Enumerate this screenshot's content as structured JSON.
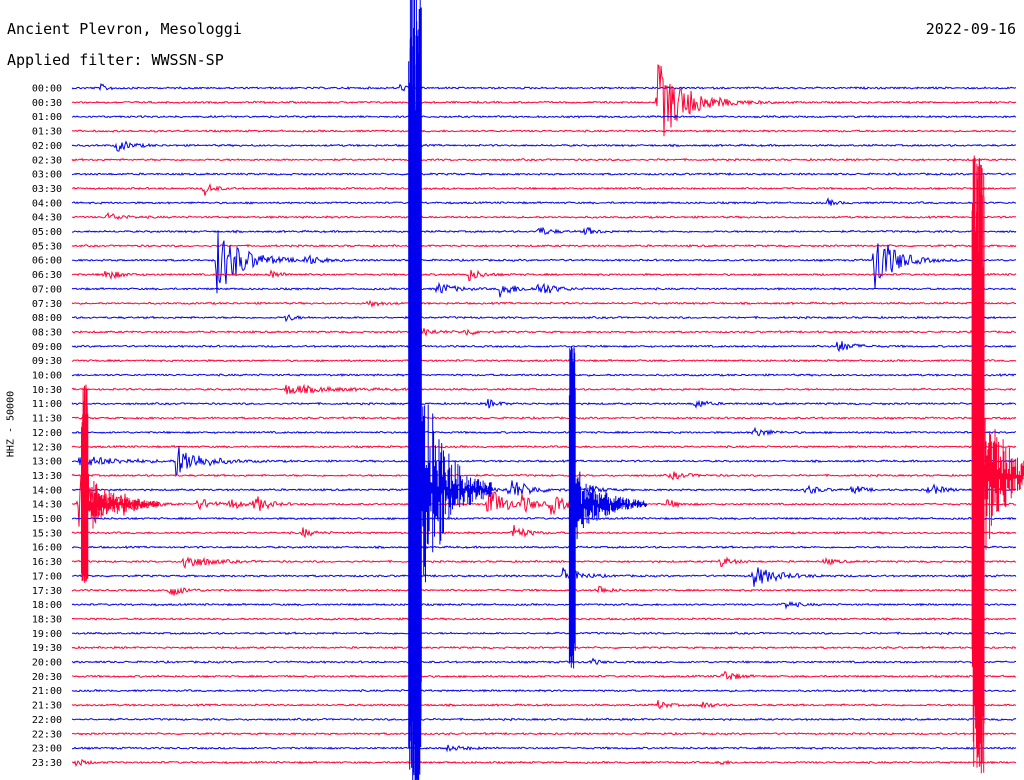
{
  "header": {
    "station": "Ancient Plevron, Mesologgi",
    "filter": "Applied filter: WWSSN-SP",
    "date": "2022-09-16"
  },
  "chart_data": {
    "type": "line",
    "title": "Ancient Plevron, Mesologgi",
    "subtitle": "Applied filter: WWSSN-SP",
    "date": "2022-09-16",
    "ylabel": "HHZ - 50000",
    "xlabel": "",
    "x_range_minutes": [
      0,
      30
    ],
    "rows_per_hour": 2,
    "row_labels": [
      "00:00",
      "00:30",
      "01:00",
      "01:30",
      "02:00",
      "02:30",
      "03:00",
      "03:30",
      "04:00",
      "04:30",
      "05:00",
      "05:30",
      "06:00",
      "06:30",
      "07:00",
      "07:30",
      "08:00",
      "08:30",
      "09:00",
      "09:30",
      "10:00",
      "10:30",
      "11:00",
      "11:30",
      "12:00",
      "12:30",
      "13:00",
      "13:30",
      "14:00",
      "14:30",
      "15:00",
      "15:30",
      "16:00",
      "16:30",
      "17:00",
      "17:30",
      "18:00",
      "18:30",
      "19:00",
      "19:30",
      "20:00",
      "20:30",
      "21:00",
      "21:30",
      "22:00",
      "22:30",
      "23:00",
      "23:30"
    ],
    "trace_colors": [
      "#0000ee",
      "#ff0033"
    ],
    "events": [
      {
        "row": 0,
        "minute": 0.9,
        "amp": 0.25,
        "dur": 0.6
      },
      {
        "row": 0,
        "minute": 10.4,
        "amp": 0.25,
        "dur": 0.6
      },
      {
        "row": 1,
        "minute": 18.6,
        "amp": 3.0,
        "dur": 1.8
      },
      {
        "row": 4,
        "minute": 1.4,
        "amp": 0.45,
        "dur": 0.9
      },
      {
        "row": 7,
        "minute": 4.2,
        "amp": 0.5,
        "dur": 0.6
      },
      {
        "row": 9,
        "minute": 1.1,
        "amp": 0.3,
        "dur": 1.0
      },
      {
        "row": 8,
        "minute": 24.0,
        "amp": 0.25,
        "dur": 0.6
      },
      {
        "row": 10,
        "minute": 14.8,
        "amp": 0.35,
        "dur": 0.8
      },
      {
        "row": 10,
        "minute": 16.3,
        "amp": 0.35,
        "dur": 0.6
      },
      {
        "row": 12,
        "minute": 4.6,
        "amp": 2.5,
        "dur": 1.6
      },
      {
        "row": 12,
        "minute": 7.4,
        "amp": 0.35,
        "dur": 0.9
      },
      {
        "row": 12,
        "minute": 25.5,
        "amp": 2.5,
        "dur": 1.2
      },
      {
        "row": 13,
        "minute": 1.0,
        "amp": 0.45,
        "dur": 0.9
      },
      {
        "row": 13,
        "minute": 6.3,
        "amp": 0.3,
        "dur": 0.7
      },
      {
        "row": 13,
        "minute": 12.6,
        "amp": 0.45,
        "dur": 0.8
      },
      {
        "row": 14,
        "minute": 11.6,
        "amp": 0.5,
        "dur": 1.0
      },
      {
        "row": 14,
        "minute": 13.6,
        "amp": 0.55,
        "dur": 1.0
      },
      {
        "row": 14,
        "minute": 14.8,
        "amp": 0.55,
        "dur": 1.0
      },
      {
        "row": 15,
        "minute": 9.4,
        "amp": 0.3,
        "dur": 0.7
      },
      {
        "row": 16,
        "minute": 6.8,
        "amp": 0.3,
        "dur": 0.5
      },
      {
        "row": 17,
        "minute": 11.0,
        "amp": 0.4,
        "dur": 0.8
      },
      {
        "row": 17,
        "minute": 12.5,
        "amp": 0.3,
        "dur": 0.6
      },
      {
        "row": 18,
        "minute": 24.3,
        "amp": 0.5,
        "dur": 0.9
      },
      {
        "row": 21,
        "minute": 6.8,
        "amp": 0.35,
        "dur": 2.5
      },
      {
        "row": 22,
        "minute": 13.2,
        "amp": 0.35,
        "dur": 0.6
      },
      {
        "row": 22,
        "minute": 19.8,
        "amp": 0.4,
        "dur": 0.6
      },
      {
        "row": 24,
        "minute": 21.6,
        "amp": 0.35,
        "dur": 1.0
      },
      {
        "row": 26,
        "minute": 3.3,
        "amp": 1.2,
        "dur": 1.5
      },
      {
        "row": 26,
        "minute": 0.2,
        "amp": 0.4,
        "dur": 2.5
      },
      {
        "row": 27,
        "minute": 19.0,
        "amp": 0.3,
        "dur": 1.0
      },
      {
        "row": 28,
        "minute": 11.7,
        "amp": 1.0,
        "dur": 1.5
      },
      {
        "row": 28,
        "minute": 13.9,
        "amp": 0.8,
        "dur": 1.2
      },
      {
        "row": 28,
        "minute": 16.4,
        "amp": 0.35,
        "dur": 0.8
      },
      {
        "row": 28,
        "minute": 23.3,
        "amp": 0.4,
        "dur": 0.8
      },
      {
        "row": 28,
        "minute": 24.8,
        "amp": 0.4,
        "dur": 0.6
      },
      {
        "row": 28,
        "minute": 27.2,
        "amp": 0.5,
        "dur": 0.8
      },
      {
        "row": 29,
        "minute": 0.2,
        "amp": 2.5,
        "dur": 1.6
      },
      {
        "row": 29,
        "minute": 1.6,
        "amp": 0.6,
        "dur": 0.8
      },
      {
        "row": 29,
        "minute": 4.0,
        "amp": 0.5,
        "dur": 0.8
      },
      {
        "row": 29,
        "minute": 5.0,
        "amp": 0.5,
        "dur": 0.6
      },
      {
        "row": 29,
        "minute": 5.8,
        "amp": 0.7,
        "dur": 0.8
      },
      {
        "row": 29,
        "minute": 13.2,
        "amp": 1.5,
        "dur": 1.0
      },
      {
        "row": 29,
        "minute": 14.3,
        "amp": 0.6,
        "dur": 0.8
      },
      {
        "row": 29,
        "minute": 15.2,
        "amp": 0.7,
        "dur": 1.0
      },
      {
        "row": 29,
        "minute": 18.9,
        "amp": 0.4,
        "dur": 0.6
      },
      {
        "row": 31,
        "minute": 7.3,
        "amp": 0.4,
        "dur": 0.6
      },
      {
        "row": 31,
        "minute": 14.0,
        "amp": 0.6,
        "dur": 0.8
      },
      {
        "row": 33,
        "minute": 3.5,
        "amp": 0.6,
        "dur": 1.4
      },
      {
        "row": 33,
        "minute": 20.6,
        "amp": 0.4,
        "dur": 0.7
      },
      {
        "row": 33,
        "minute": 23.9,
        "amp": 0.3,
        "dur": 0.6
      },
      {
        "row": 34,
        "minute": 15.6,
        "amp": 0.7,
        "dur": 1.0
      },
      {
        "row": 34,
        "minute": 21.6,
        "amp": 0.8,
        "dur": 1.5
      },
      {
        "row": 35,
        "minute": 3.1,
        "amp": 0.5,
        "dur": 0.8
      },
      {
        "row": 35,
        "minute": 16.7,
        "amp": 0.4,
        "dur": 0.6
      },
      {
        "row": 36,
        "minute": 22.6,
        "amp": 0.3,
        "dur": 0.8
      },
      {
        "row": 40,
        "minute": 16.5,
        "amp": 0.25,
        "dur": 0.5
      },
      {
        "row": 41,
        "minute": 20.7,
        "amp": 0.5,
        "dur": 0.7
      },
      {
        "row": 43,
        "minute": 18.6,
        "amp": 0.35,
        "dur": 0.6
      },
      {
        "row": 43,
        "minute": 20.0,
        "amp": 0.3,
        "dur": 0.6
      },
      {
        "row": 46,
        "minute": 11.9,
        "amp": 0.2,
        "dur": 1.2
      },
      {
        "row": 47,
        "minute": 0.1,
        "amp": 0.3,
        "dur": 0.6
      },
      {
        "row": 47,
        "minute": 20.5,
        "amp": 0.25,
        "dur": 0.5
      }
    ],
    "large_events": [
      {
        "row": 29,
        "minute": 0.4,
        "amp_up": 120,
        "amp_down": 80,
        "color": "#ff0033"
      },
      {
        "row": 29,
        "minute": 15.9,
        "amp_up": 160,
        "amp_down": 170,
        "color": "#0000ee"
      },
      {
        "row": 28,
        "minute": 10.9,
        "amp_up": 500,
        "amp_down": 300,
        "color": "#0000ee"
      },
      {
        "row": 27,
        "minute": 28.8,
        "amp_up": 320,
        "amp_down": 300,
        "color": "#ff0033"
      }
    ]
  }
}
